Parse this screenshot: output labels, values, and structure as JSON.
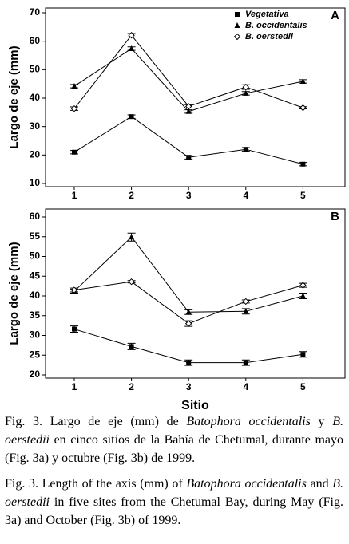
{
  "chart_data": [
    {
      "type": "line",
      "panel": "A",
      "y_label": "Largo de eje (mm)",
      "categories": [
        "1",
        "2",
        "3",
        "4",
        "5"
      ],
      "ylim": [
        10,
        70
      ],
      "yticks": [
        10,
        20,
        30,
        40,
        50,
        60,
        70
      ],
      "legend": "upper right",
      "series": [
        {
          "name": "Vegetativa",
          "color": "#000000",
          "marker": "square",
          "values": [
            21,
            33.5,
            19.2,
            22,
            16.8
          ],
          "errors": [
            0.6,
            0.6,
            0.6,
            0.6,
            0.6
          ]
        },
        {
          "name": "B. occidentalis",
          "color": "#000000",
          "marker": "triangle",
          "values": [
            44.2,
            57.4,
            35.3,
            41.7,
            45.9
          ],
          "errors": [
            0.6,
            0.6,
            0.6,
            0.6,
            0.6
          ]
        },
        {
          "name": "B. oerstedii",
          "color": "#000000",
          "marker": "diamond",
          "values": [
            36.3,
            62.1,
            37.1,
            43.9,
            36.6
          ],
          "errors": [
            0.6,
            0.6,
            0.6,
            0.8,
            0.4
          ]
        }
      ]
    },
    {
      "type": "line",
      "panel": "B",
      "y_label": "Largo de eje (mm)",
      "x_label": "Sitio",
      "categories": [
        "1",
        "2",
        "3",
        "4",
        "5"
      ],
      "ylim": [
        20,
        60
      ],
      "yticks": [
        20,
        25,
        30,
        35,
        40,
        45,
        50,
        55,
        60
      ],
      "series": [
        {
          "color": "#000000",
          "marker": "square",
          "values": [
            31.6,
            27.2,
            23.1,
            23.1,
            25.2
          ],
          "errors": [
            0.8,
            0.8,
            0.7,
            0.7,
            0.7
          ]
        },
        {
          "color": "#000000",
          "marker": "triangle",
          "values": [
            41.2,
            54.9,
            35.9,
            36.1,
            40
          ],
          "errors": [
            0.5,
            1,
            0.6,
            0.7,
            0.7
          ]
        },
        {
          "color": "#000000",
          "marker": "diamond",
          "values": [
            41.5,
            43.6,
            33,
            38.6,
            42.7
          ],
          "errors": [
            0.5,
            0.3,
            0.7,
            0.4,
            0.5
          ]
        }
      ]
    }
  ],
  "caption_es": [
    "Fig. 3. Largo de eje (mm) de ",
    "Batophora occidentalis",
    " y ",
    "B. oerstedii",
    " en cinco sitios de la Bahía de Chetumal, durante mayo (Fig. 3a) y octubre (Fig. 3b) de 1999."
  ],
  "caption_en": [
    "Fig. 3. Length of the axis (mm) of ",
    "Batophora occidentalis",
    " and ",
    "B. oerstedii",
    " in five sites from the Chetumal Bay, during May (Fig. 3a) and October (Fig. 3b) of 1999."
  ]
}
